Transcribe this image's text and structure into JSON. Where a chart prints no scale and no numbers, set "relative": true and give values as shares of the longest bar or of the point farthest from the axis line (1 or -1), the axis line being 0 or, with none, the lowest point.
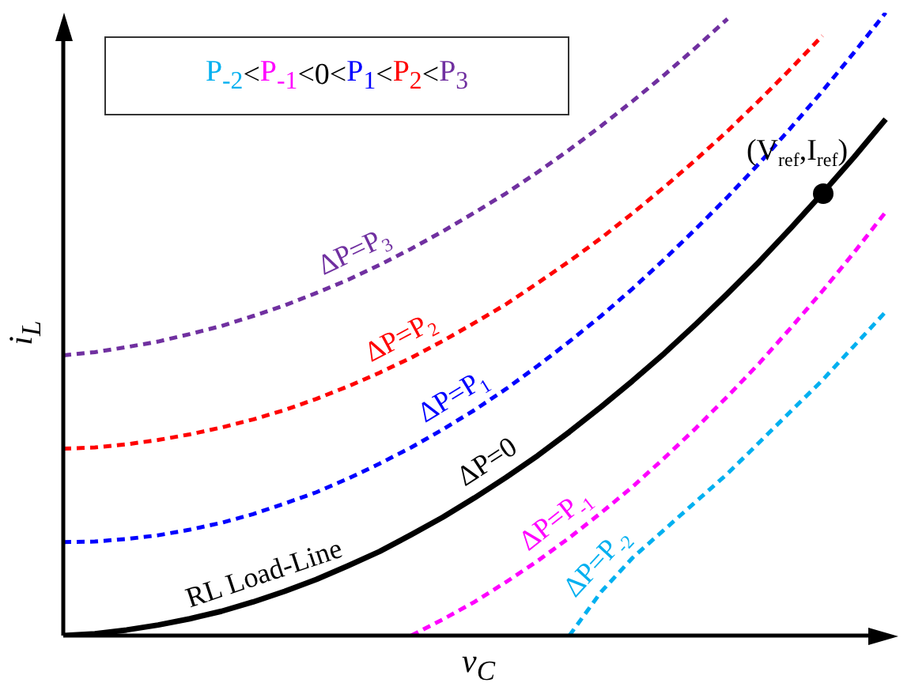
{
  "chart_data": {
    "type": "line",
    "relative": true,
    "xlabel": "v$_{C}$",
    "ylabel": "i$_{L}$",
    "categories": [
      null,
      null,
      null,
      null,
      null,
      null,
      null,
      null,
      null,
      null,
      null,
      null,
      null,
      null,
      null,
      null,
      null,
      null,
      null,
      null,
      null,
      null,
      null,
      null,
      null,
      null,
      null
    ],
    "series": [
      {
        "name": "ΔP=P$_{3}$",
        "color": "#7030a0",
        "line_style": "dashed",
        "values": [
          0.45,
          0.455,
          0.463,
          0.472,
          0.484,
          0.497,
          0.513,
          0.53,
          0.55,
          0.571,
          0.595,
          0.621,
          0.649,
          0.679,
          0.71,
          0.744,
          0.78,
          0.818,
          0.858,
          0.9,
          0.944,
          0.99,
          null,
          null,
          null,
          null,
          null
        ]
      },
      {
        "name": "ΔP=P$_{2}$",
        "color": "#ff0000",
        "line_style": "dashed",
        "values": [
          0.3,
          0.302,
          0.307,
          0.314,
          0.323,
          0.334,
          0.347,
          0.362,
          0.38,
          0.4,
          0.422,
          0.446,
          0.473,
          0.502,
          0.532,
          0.566,
          0.601,
          0.638,
          0.678,
          0.72,
          0.764,
          0.81,
          0.859,
          0.91,
          0.963,
          null,
          null
        ]
      },
      {
        "name": "ΔP=P$_{1}$",
        "color": "#0000ff",
        "line_style": "dashed",
        "values": [
          0.15,
          0.151,
          0.155,
          0.161,
          0.17,
          0.181,
          0.195,
          0.212,
          0.23,
          0.252,
          0.276,
          0.302,
          0.331,
          0.362,
          0.396,
          0.433,
          0.472,
          0.513,
          0.557,
          0.604,
          0.653,
          0.704,
          0.758,
          0.815,
          0.874,
          0.936,
          1.0
        ]
      },
      {
        "name": "ΔP=0",
        "color": "#000000",
        "line_style": "solid",
        "values": [
          0,
          0.003,
          0.009,
          0.017,
          0.027,
          0.039,
          0.054,
          0.071,
          0.09,
          0.112,
          0.135,
          0.162,
          0.19,
          0.221,
          0.254,
          0.289,
          0.327,
          0.367,
          0.409,
          0.453,
          0.5,
          0.549,
          0.6,
          0.654,
          0.71,
          0.768,
          0.829
        ]
      },
      {
        "name": "ΔP=P$_{-1}$",
        "color": "#ff00ff",
        "line_style": "dashed",
        "values": [
          null,
          null,
          null,
          null,
          null,
          null,
          null,
          null,
          null,
          null,
          null,
          0,
          0.026,
          0.054,
          0.086,
          0.12,
          0.157,
          0.197,
          0.239,
          0.285,
          0.333,
          0.384,
          0.437,
          0.494,
          0.553,
          0.615,
          0.68
        ]
      },
      {
        "name": "ΔP=P$_{-2}$",
        "color": "#00b0f0",
        "line_style": "dashed",
        "values": [
          null,
          null,
          null,
          null,
          null,
          null,
          null,
          null,
          null,
          null,
          null,
          null,
          null,
          null,
          null,
          null,
          0,
          0.07,
          0.125,
          0.17,
          0.215,
          0.26,
          0.31,
          0.36,
          0.41,
          0.465,
          0.52
        ]
      }
    ],
    "annotations": [
      "P$_{-2}$<P$_{-1}$<0<P$_{1}$<P$_{2}$<P$_{3}$",
      "RL Load-Line",
      "(V$_{ref}$,I$_{ref}$)"
    ]
  }
}
